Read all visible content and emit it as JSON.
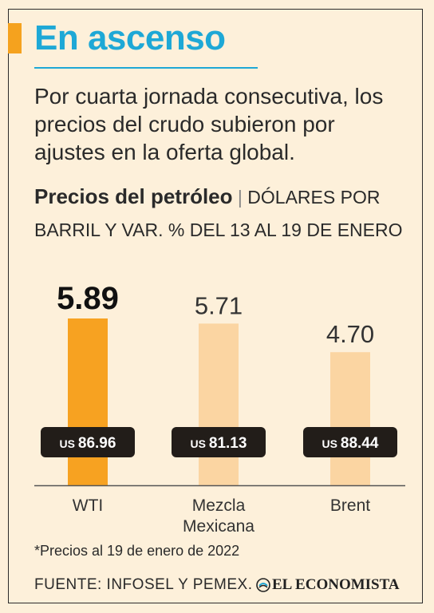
{
  "header": {
    "title": "En ascenso",
    "intro": "Por cuarta jornada consecutiva, los precios del crudo subieron por ajustes en la oferta global."
  },
  "chart_data": {
    "type": "bar",
    "title": "Precios del petróleo",
    "title_separator": "|",
    "subtitle": "Dólares por barril y var. % del 13 al 19 de enero",
    "categories": [
      "WTI",
      "Mezcla Mexicana",
      "Brent"
    ],
    "values": [
      5.89,
      5.71,
      4.7
    ],
    "value_labels": [
      "5.89",
      "5.71",
      "4.70"
    ],
    "price_currency": "US",
    "prices": [
      "86.96",
      "81.13",
      "88.44"
    ],
    "highlight_index": 0,
    "ylim": [
      0,
      5.89
    ],
    "grid": false,
    "colors": {
      "highlight": "#f7a221",
      "normal": "#fbd5a2",
      "price_badge": "#221d19",
      "price_text": "#ffffff",
      "baseline": "#555555"
    }
  },
  "footnote": "*Precios al 19 de enero de 2022",
  "source": "FUENTE: INFOSEL Y PEMEX.",
  "logo": {
    "icon": "el-economista-logo-icon",
    "text": "EL ECONOMISTA"
  },
  "colors": {
    "accent_orange": "#f5a21e",
    "title_blue": "#1ea8d6",
    "background": "#fdf0da",
    "text": "#2a2a2a"
  }
}
